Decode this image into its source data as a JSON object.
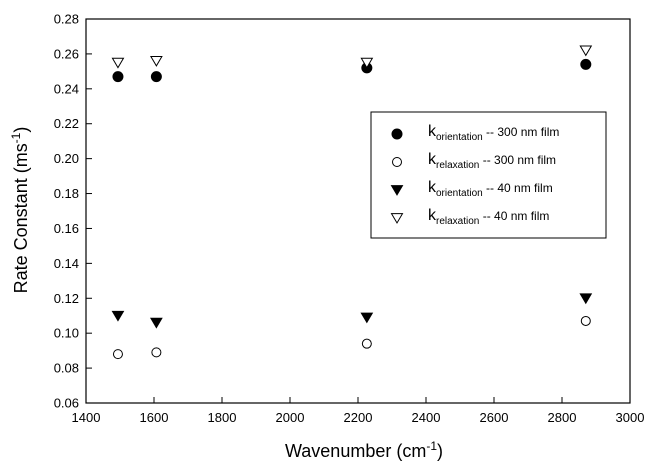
{
  "chart_data": {
    "type": "scatter",
    "xlabel": {
      "main": "Wavenumber (cm",
      "sup": "-1",
      "end": ")"
    },
    "ylabel": {
      "main": "Rate Constant (ms",
      "sup": "-1",
      "end": ")"
    },
    "xlim": [
      1400,
      3000
    ],
    "ylim": [
      0.06,
      0.28
    ],
    "xticks": [
      "1400",
      "1600",
      "1800",
      "2000",
      "2200",
      "2400",
      "2600",
      "2800",
      "3000"
    ],
    "yticks": [
      "0.06",
      "0.08",
      "0.10",
      "0.12",
      "0.14",
      "0.16",
      "0.18",
      "0.20",
      "0.22",
      "0.24",
      "0.26",
      "0.28"
    ],
    "grid": false,
    "legend_position": "right-center",
    "series": [
      {
        "id": "k_or_300",
        "label_base": "k",
        "label_sub": "orientation",
        "label_rest": " -- 300 nm film",
        "marker": "filled-circle",
        "points": [
          [
            1494,
            0.247
          ],
          [
            1607,
            0.247
          ],
          [
            2226,
            0.252
          ],
          [
            2870,
            0.254
          ]
        ]
      },
      {
        "id": "k_rel_300",
        "label_base": "k",
        "label_sub": "relaxation",
        "label_rest": " -- 300 nm film",
        "marker": "open-circle",
        "points": [
          [
            1494,
            0.088
          ],
          [
            1607,
            0.089
          ],
          [
            2226,
            0.094
          ],
          [
            2870,
            0.107
          ]
        ]
      },
      {
        "id": "k_or_40",
        "label_base": "k",
        "label_sub": "orientation",
        "label_rest": " -- 40 nm film",
        "marker": "filled-triangle-down",
        "points": [
          [
            1494,
            0.11
          ],
          [
            1607,
            0.106
          ],
          [
            2226,
            0.109
          ],
          [
            2870,
            0.12
          ]
        ]
      },
      {
        "id": "k_rel_40",
        "label_base": "k",
        "label_sub": "relaxation",
        "label_rest": " -- 40 nm film",
        "marker": "open-triangle-down",
        "points": [
          [
            1494,
            0.255
          ],
          [
            1607,
            0.256
          ],
          [
            2226,
            0.255
          ],
          [
            2870,
            0.262
          ]
        ]
      }
    ]
  }
}
